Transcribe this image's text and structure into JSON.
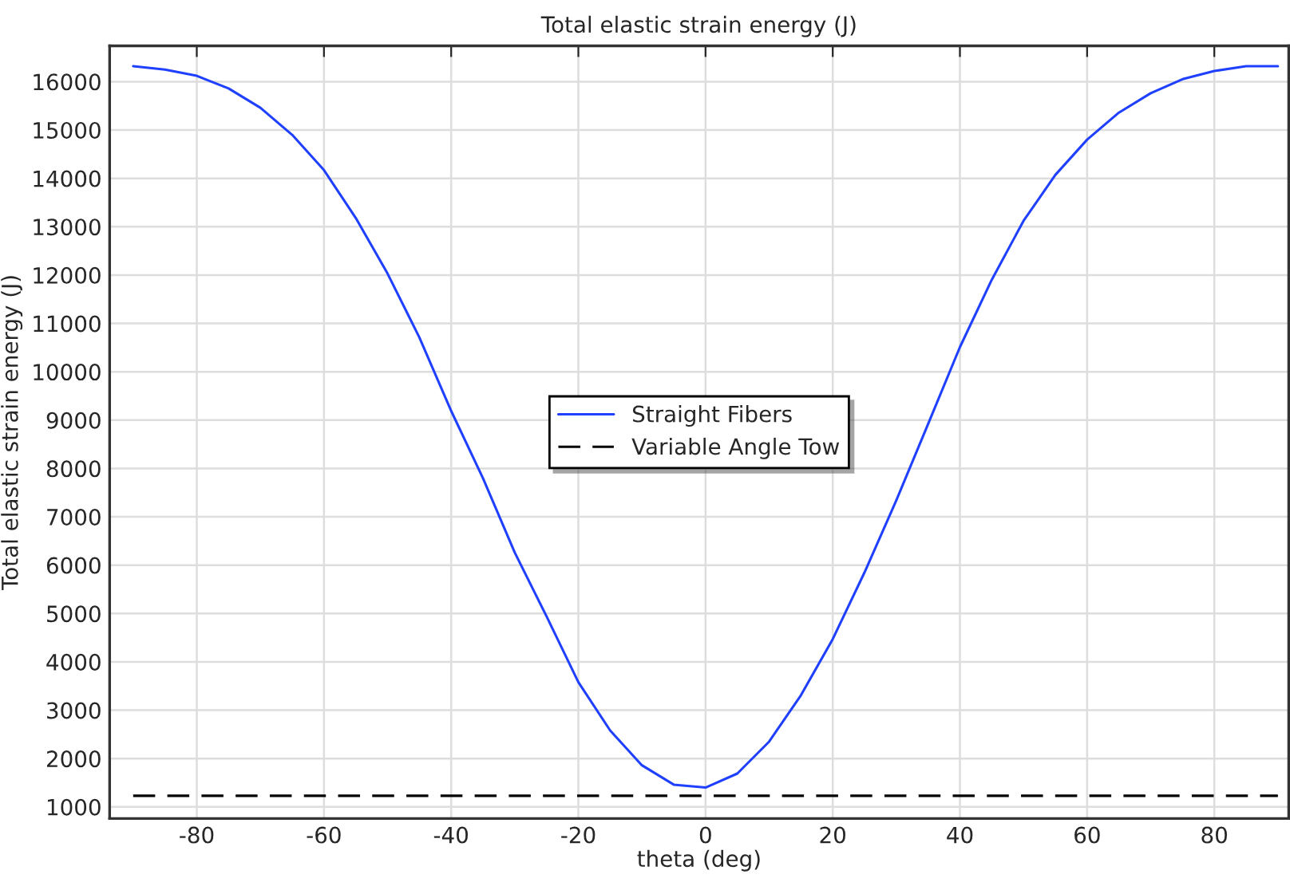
{
  "chart_data": {
    "type": "line",
    "title": "Total elastic strain energy (J)",
    "xlabel": "theta (deg)",
    "ylabel": "Total elastic strain energy (J)",
    "xlim": [
      -93.7,
      91.7
    ],
    "xticks": [
      -80,
      -60,
      -40,
      -20,
      0,
      20,
      40,
      60,
      80
    ],
    "ylim": [
      760,
      16740
    ],
    "yticks": [
      1000,
      2000,
      3000,
      4000,
      5000,
      6000,
      7000,
      8000,
      9000,
      10000,
      11000,
      12000,
      13000,
      14000,
      15000,
      16000
    ],
    "grid": true,
    "legend": "center",
    "marker": "none",
    "series": [
      {
        "name": "Straight Fibers",
        "color": "#2040ff",
        "line_style": "solid",
        "x": [
          -90,
          -85,
          -80,
          -75,
          -70,
          -65,
          -60,
          -55,
          -50,
          -45,
          -40,
          -35,
          -30,
          -25,
          -20,
          -15,
          -10,
          -5,
          0,
          5,
          10,
          15,
          20,
          25,
          30,
          35,
          40,
          45,
          50,
          55,
          60,
          65,
          70,
          75,
          80,
          85,
          90
        ],
        "values": [
          16320,
          16250,
          16120,
          15860,
          15460,
          14900,
          14170,
          13180,
          12030,
          10710,
          9190,
          7800,
          6260,
          4940,
          3580,
          2580,
          1860,
          1460,
          1400,
          1690,
          2350,
          3310,
          4470,
          5850,
          7340,
          8920,
          10510,
          11900,
          13120,
          14070,
          14800,
          15360,
          15760,
          16050,
          16220,
          16320,
          16320
        ]
      },
      {
        "name": "Variable Angle Tow",
        "color": "#000000",
        "line_style": "dashed",
        "x": [
          -90,
          90
        ],
        "values": [
          1230,
          1230
        ]
      }
    ]
  }
}
